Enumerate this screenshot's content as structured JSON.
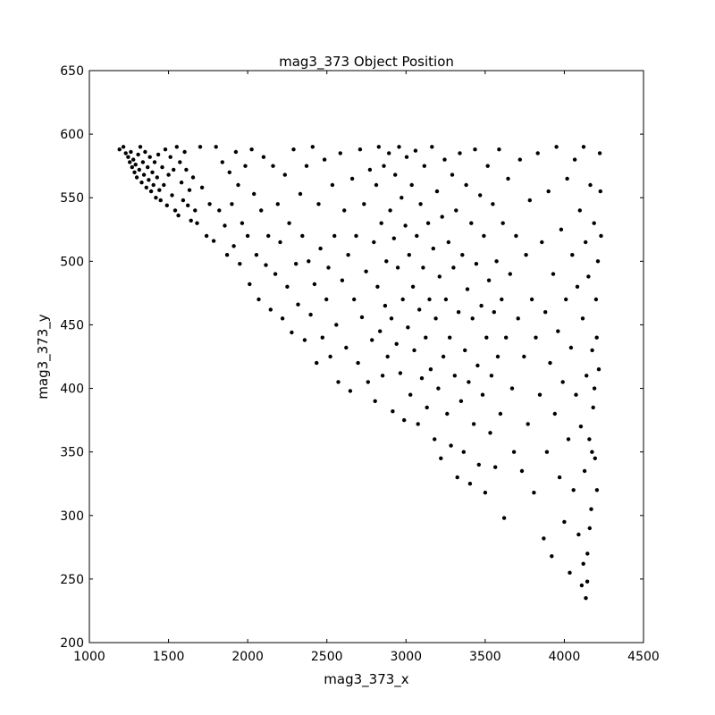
{
  "chart_data": {
    "type": "scatter",
    "title": "mag3_373 Object Position",
    "xlabel": "mag3_373_x",
    "ylabel": "mag3_373_y",
    "xlim": [
      1000,
      4500
    ],
    "ylim": [
      200,
      650
    ],
    "xticks": [
      1000,
      1500,
      2000,
      2500,
      3000,
      3500,
      4000,
      4500
    ],
    "yticks": [
      200,
      250,
      300,
      350,
      400,
      450,
      500,
      550,
      600,
      650
    ],
    "grid": false,
    "legend": "none",
    "marker_color": "#000000",
    "series": [
      {
        "points": [
          [
            1190,
            588
          ],
          [
            1215,
            590
          ],
          [
            1230,
            585
          ],
          [
            1245,
            582
          ],
          [
            1255,
            578
          ],
          [
            1262,
            586
          ],
          [
            1270,
            574
          ],
          [
            1278,
            580
          ],
          [
            1285,
            570
          ],
          [
            1292,
            576
          ],
          [
            1300,
            566
          ],
          [
            1308,
            584
          ],
          [
            1315,
            572
          ],
          [
            1322,
            590
          ],
          [
            1330,
            562
          ],
          [
            1338,
            578
          ],
          [
            1345,
            568
          ],
          [
            1352,
            586
          ],
          [
            1360,
            558
          ],
          [
            1368,
            574
          ],
          [
            1375,
            564
          ],
          [
            1382,
            582
          ],
          [
            1390,
            555
          ],
          [
            1398,
            570
          ],
          [
            1405,
            560
          ],
          [
            1412,
            578
          ],
          [
            1420,
            550
          ],
          [
            1428,
            566
          ],
          [
            1435,
            584
          ],
          [
            1442,
            556
          ],
          [
            1450,
            548
          ],
          [
            1460,
            574
          ],
          [
            1470,
            560
          ],
          [
            1480,
            588
          ],
          [
            1490,
            544
          ],
          [
            1500,
            568
          ],
          [
            1512,
            582
          ],
          [
            1522,
            552
          ],
          [
            1532,
            572
          ],
          [
            1542,
            540
          ],
          [
            1552,
            590
          ],
          [
            1562,
            536
          ],
          [
            1572,
            578
          ],
          [
            1582,
            562
          ],
          [
            1592,
            548
          ],
          [
            1602,
            586
          ],
          [
            1612,
            572
          ],
          [
            1622,
            544
          ],
          [
            1632,
            556
          ],
          [
            1642,
            532
          ],
          [
            1655,
            566
          ],
          [
            1668,
            540
          ],
          [
            1680,
            530
          ],
          [
            1700,
            590
          ],
          [
            1712,
            558
          ],
          [
            1740,
            520
          ],
          [
            1760,
            545
          ],
          [
            1785,
            516
          ],
          [
            1800,
            590
          ],
          [
            1820,
            540
          ],
          [
            1840,
            578
          ],
          [
            1855,
            528
          ],
          [
            1870,
            505
          ],
          [
            1885,
            570
          ],
          [
            1900,
            545
          ],
          [
            1912,
            512
          ],
          [
            1925,
            586
          ],
          [
            1940,
            560
          ],
          [
            1950,
            498
          ],
          [
            1965,
            530
          ],
          [
            1985,
            575
          ],
          [
            2000,
            520
          ],
          [
            2012,
            482
          ],
          [
            2025,
            588
          ],
          [
            2040,
            553
          ],
          [
            2055,
            505
          ],
          [
            2070,
            470
          ],
          [
            2085,
            540
          ],
          [
            2100,
            582
          ],
          [
            2115,
            497
          ],
          [
            2130,
            520
          ],
          [
            2145,
            462
          ],
          [
            2160,
            575
          ],
          [
            2175,
            490
          ],
          [
            2190,
            545
          ],
          [
            2205,
            515
          ],
          [
            2220,
            455
          ],
          [
            2235,
            568
          ],
          [
            2250,
            480
          ],
          [
            2262,
            530
          ],
          [
            2278,
            444
          ],
          [
            2290,
            588
          ],
          [
            2305,
            498
          ],
          [
            2318,
            466
          ],
          [
            2332,
            553
          ],
          [
            2345,
            520
          ],
          [
            2360,
            438
          ],
          [
            2372,
            575
          ],
          [
            2385,
            500
          ],
          [
            2398,
            458
          ],
          [
            2410,
            590
          ],
          [
            2422,
            482
          ],
          [
            2435,
            420
          ],
          [
            2448,
            545
          ],
          [
            2460,
            510
          ],
          [
            2472,
            440
          ],
          [
            2485,
            580
          ],
          [
            2497,
            470
          ],
          [
            2510,
            495
          ],
          [
            2522,
            425
          ],
          [
            2535,
            560
          ],
          [
            2548,
            520
          ],
          [
            2560,
            450
          ],
          [
            2572,
            405
          ],
          [
            2585,
            585
          ],
          [
            2597,
            485
          ],
          [
            2610,
            540
          ],
          [
            2622,
            432
          ],
          [
            2635,
            505
          ],
          [
            2648,
            398
          ],
          [
            2660,
            565
          ],
          [
            2672,
            470
          ],
          [
            2685,
            520
          ],
          [
            2697,
            420
          ],
          [
            2710,
            588
          ],
          [
            2722,
            456
          ],
          [
            2735,
            545
          ],
          [
            2748,
            492
          ],
          [
            2760,
            405
          ],
          [
            2772,
            572
          ],
          [
            2785,
            438
          ],
          [
            2797,
            515
          ],
          [
            2805,
            390
          ],
          [
            2812,
            560
          ],
          [
            2820,
            480
          ],
          [
            2828,
            590
          ],
          [
            2836,
            445
          ],
          [
            2844,
            530
          ],
          [
            2852,
            410
          ],
          [
            2860,
            575
          ],
          [
            2868,
            465
          ],
          [
            2876,
            500
          ],
          [
            2884,
            425
          ],
          [
            2892,
            585
          ],
          [
            2900,
            540
          ],
          [
            2908,
            455
          ],
          [
            2916,
            382
          ],
          [
            2924,
            518
          ],
          [
            2932,
            568
          ],
          [
            2940,
            435
          ],
          [
            2948,
            495
          ],
          [
            2956,
            590
          ],
          [
            2964,
            412
          ],
          [
            2972,
            550
          ],
          [
            2980,
            470
          ],
          [
            2988,
            375
          ],
          [
            2996,
            528
          ],
          [
            3004,
            582
          ],
          [
            3012,
            448
          ],
          [
            3020,
            505
          ],
          [
            3028,
            395
          ],
          [
            3036,
            560
          ],
          [
            3044,
            480
          ],
          [
            3052,
            430
          ],
          [
            3060,
            587
          ],
          [
            3068,
            520
          ],
          [
            3076,
            372
          ],
          [
            3084,
            462
          ],
          [
            3092,
            545
          ],
          [
            3100,
            408
          ],
          [
            3108,
            495
          ],
          [
            3116,
            575
          ],
          [
            3124,
            440
          ],
          [
            3132,
            385
          ],
          [
            3140,
            530
          ],
          [
            3148,
            470
          ],
          [
            3156,
            415
          ],
          [
            3164,
            590
          ],
          [
            3172,
            510
          ],
          [
            3180,
            360
          ],
          [
            3188,
            455
          ],
          [
            3196,
            555
          ],
          [
            3204,
            400
          ],
          [
            3212,
            488
          ],
          [
            3220,
            345
          ],
          [
            3228,
            535
          ],
          [
            3236,
            425
          ],
          [
            3244,
            580
          ],
          [
            3252,
            470
          ],
          [
            3260,
            380
          ],
          [
            3268,
            515
          ],
          [
            3276,
            440
          ],
          [
            3284,
            355
          ],
          [
            3292,
            568
          ],
          [
            3300,
            495
          ],
          [
            3308,
            410
          ],
          [
            3316,
            540
          ],
          [
            3324,
            330
          ],
          [
            3332,
            460
          ],
          [
            3340,
            585
          ],
          [
            3348,
            390
          ],
          [
            3356,
            505
          ],
          [
            3364,
            350
          ],
          [
            3372,
            430
          ],
          [
            3380,
            560
          ],
          [
            3388,
            478
          ],
          [
            3396,
            405
          ],
          [
            3404,
            325
          ],
          [
            3412,
            530
          ],
          [
            3420,
            455
          ],
          [
            3428,
            372
          ],
          [
            3436,
            588
          ],
          [
            3444,
            498
          ],
          [
            3452,
            418
          ],
          [
            3460,
            340
          ],
          [
            3468,
            552
          ],
          [
            3476,
            465
          ],
          [
            3484,
            395
          ],
          [
            3492,
            520
          ],
          [
            3500,
            318
          ],
          [
            3508,
            440
          ],
          [
            3516,
            575
          ],
          [
            3524,
            485
          ],
          [
            3532,
            365
          ],
          [
            3540,
            410
          ],
          [
            3548,
            545
          ],
          [
            3556,
            460
          ],
          [
            3564,
            338
          ],
          [
            3572,
            500
          ],
          [
            3580,
            425
          ],
          [
            3588,
            588
          ],
          [
            3596,
            380
          ],
          [
            3604,
            470
          ],
          [
            3612,
            530
          ],
          [
            3620,
            298
          ],
          [
            3632,
            440
          ],
          [
            3645,
            565
          ],
          [
            3658,
            490
          ],
          [
            3670,
            400
          ],
          [
            3682,
            350
          ],
          [
            3695,
            520
          ],
          [
            3708,
            455
          ],
          [
            3720,
            580
          ],
          [
            3732,
            335
          ],
          [
            3745,
            425
          ],
          [
            3758,
            505
          ],
          [
            3770,
            372
          ],
          [
            3782,
            548
          ],
          [
            3795,
            470
          ],
          [
            3808,
            318
          ],
          [
            3820,
            440
          ],
          [
            3832,
            585
          ],
          [
            3845,
            395
          ],
          [
            3858,
            515
          ],
          [
            3870,
            282
          ],
          [
            3880,
            460
          ],
          [
            3890,
            350
          ],
          [
            3900,
            555
          ],
          [
            3910,
            420
          ],
          [
            3920,
            268
          ],
          [
            3930,
            490
          ],
          [
            3940,
            380
          ],
          [
            3950,
            590
          ],
          [
            3960,
            445
          ],
          [
            3970,
            330
          ],
          [
            3980,
            525
          ],
          [
            3990,
            405
          ],
          [
            4000,
            295
          ],
          [
            4010,
            470
          ],
          [
            4018,
            565
          ],
          [
            4026,
            360
          ],
          [
            4034,
            255
          ],
          [
            4042,
            432
          ],
          [
            4050,
            505
          ],
          [
            4058,
            320
          ],
          [
            4066,
            580
          ],
          [
            4074,
            395
          ],
          [
            4082,
            480
          ],
          [
            4090,
            285
          ],
          [
            4098,
            540
          ],
          [
            4104,
            370
          ],
          [
            4110,
            245
          ],
          [
            4116,
            455
          ],
          [
            4122,
            590
          ],
          [
            4128,
            335
          ],
          [
            4134,
            515
          ],
          [
            4140,
            410
          ],
          [
            4146,
            270
          ],
          [
            4152,
            488
          ],
          [
            4158,
            360
          ],
          [
            4164,
            560
          ],
          [
            4170,
            305
          ],
          [
            4176,
            430
          ],
          [
            4182,
            385
          ],
          [
            4188,
            530
          ],
          [
            4194,
            345
          ],
          [
            4200,
            470
          ],
          [
            4206,
            320
          ],
          [
            4212,
            500
          ],
          [
            4218,
            415
          ],
          [
            4224,
            585
          ],
          [
            4228,
            555
          ],
          [
            4232,
            520
          ],
          [
            4136,
            235
          ],
          [
            4145,
            248
          ],
          [
            4120,
            262
          ],
          [
            4160,
            290
          ],
          [
            4175,
            350
          ],
          [
            4190,
            400
          ],
          [
            4205,
            440
          ]
        ]
      }
    ]
  }
}
